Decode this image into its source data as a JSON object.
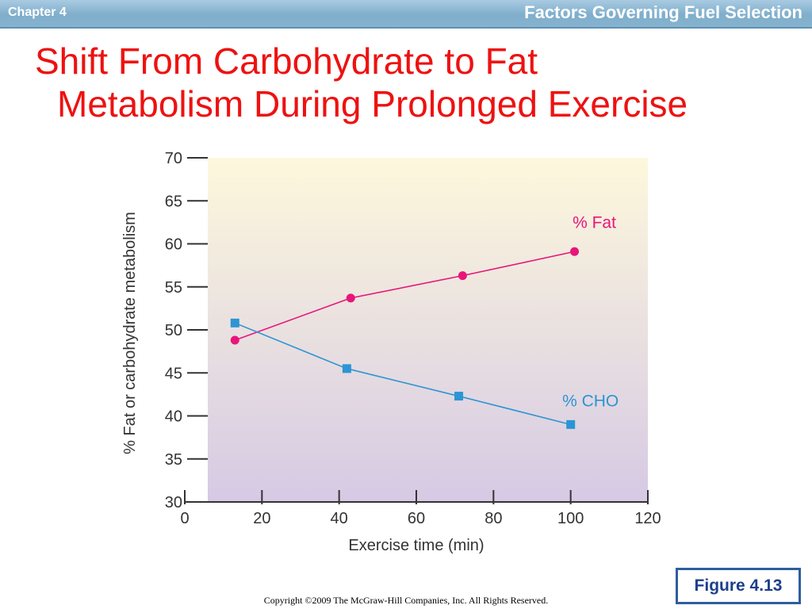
{
  "header": {
    "chapter": "Chapter 4",
    "title": "Factors Governing Fuel Selection"
  },
  "slide": {
    "title_line1": "Shift From Carbohydrate to Fat",
    "title_line2": "Metabolism During Prolonged Exercise",
    "figure_label": "Figure 4.13",
    "copyright": "Copyright ©2009 The McGraw-Hill Companies, Inc. All Rights Reserved."
  },
  "colors": {
    "title": "#ee1111",
    "fat": "#e8157a",
    "cho": "#2c95d3",
    "plot_top": "#fdf8dc",
    "plot_bottom": "#d6c9e4"
  },
  "chart_data": {
    "type": "line",
    "xlabel": "Exercise time (min)",
    "ylabel": "% Fat or carbohydrate metabolism",
    "xlim": [
      0,
      120
    ],
    "ylim": [
      30,
      70
    ],
    "xticks": [
      "0",
      "20",
      "40",
      "60",
      "80",
      "100",
      "120"
    ],
    "yticks": [
      "30",
      "35",
      "40",
      "45",
      "50",
      "55",
      "60",
      "65",
      "70"
    ],
    "grid": false,
    "series": [
      {
        "name": "% Fat",
        "marker": "circle",
        "color": "#e8157a",
        "x": [
          13,
          43,
          72,
          101
        ],
        "y": [
          48.8,
          53.7,
          56.3,
          59.1
        ]
      },
      {
        "name": "% CHO",
        "marker": "square",
        "color": "#2c95d3",
        "x": [
          13,
          42,
          71,
          100
        ],
        "y": [
          50.8,
          45.5,
          42.3,
          39.0
        ]
      }
    ]
  }
}
